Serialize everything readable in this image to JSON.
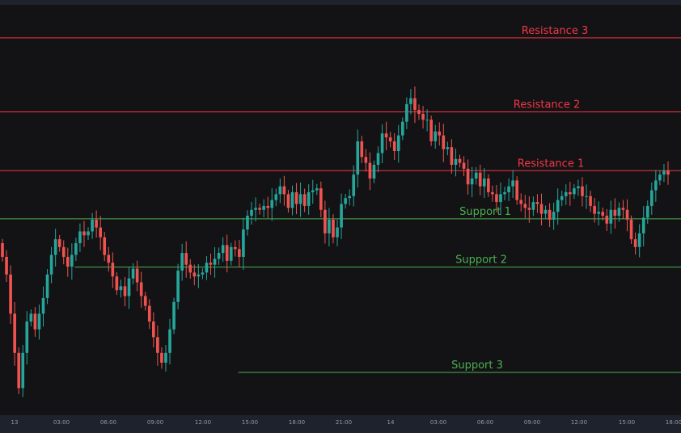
{
  "chart_data": {
    "type": "candlestick",
    "colors": {
      "background": "#131316",
      "up": "#26a69a",
      "down": "#ef5350",
      "resistance": "#f23645",
      "support": "#4caf50",
      "axis_text": "#9598a1"
    },
    "x_tick_labels": [
      "13",
      "03:00",
      "06:00",
      "09:00",
      "12:00",
      "15:00",
      "18:00",
      "21:00",
      "14",
      "03:00",
      "06:00",
      "09:00",
      "12:00",
      "15:00",
      "18:00"
    ],
    "ylim": [
      0,
      100
    ],
    "levels": [
      {
        "label": "Resistance 3",
        "kind": "resistance",
        "value": 92.4,
        "start": 0
      },
      {
        "label": "Resistance 2",
        "kind": "resistance",
        "value": 73.5,
        "start": 0
      },
      {
        "label": "Resistance 1",
        "kind": "resistance",
        "value": 58.5,
        "start": 0
      },
      {
        "label": "Support 1",
        "kind": "support",
        "value": 46.2,
        "start": 0
      },
      {
        "label": "Support 2",
        "kind": "support",
        "value": 33.9,
        "start": 0.11
      },
      {
        "label": "Support 3",
        "kind": "support",
        "value": 7.0,
        "start": 0.35
      }
    ],
    "closes": [
      36.5,
      32.0,
      22.0,
      12.0,
      3.0,
      12.0,
      20.0,
      22.0,
      18.0,
      22.0,
      26.0,
      32.0,
      37.0,
      41.0,
      39.0,
      36.5,
      34.0,
      37.0,
      40.0,
      43.0,
      42.0,
      43.0,
      46.0,
      44.0,
      41.5,
      37.0,
      35.0,
      31.5,
      28.0,
      29.0,
      26.5,
      31.0,
      33.5,
      30.0,
      26.5,
      24.0,
      20.0,
      16.0,
      12.0,
      9.5,
      12.0,
      18.0,
      25.0,
      33.0,
      37.5,
      34.5,
      32.5,
      31.5,
      32.0,
      32.5,
      35.0,
      34.5,
      36.0,
      37.5,
      39.5,
      35.5,
      39.0,
      38.5,
      36.5,
      43.5,
      47.0,
      48.5,
      49.0,
      48.5,
      49.5,
      49.0,
      51.0,
      52.5,
      54.5,
      52.5,
      49.0,
      53.0,
      50.0,
      52.5,
      49.5,
      53.0,
      53.5,
      54.0,
      48.5,
      42.5,
      46.0,
      41.5,
      44.0,
      50.0,
      51.5,
      52.0,
      57.5,
      66.0,
      62.0,
      60.5,
      56.5,
      60.0,
      63.0,
      68.0,
      67.0,
      66.0,
      63.5,
      67.5,
      71.0,
      75.5,
      77.0,
      74.0,
      73.0,
      71.5,
      71.5,
      66.0,
      68.5,
      67.5,
      64.0,
      64.5,
      60.0,
      61.5,
      60.5,
      59.0,
      55.0,
      56.5,
      58.0,
      54.5,
      56.5,
      53.0,
      52.5,
      50.5,
      52.5,
      53.0,
      54.5,
      56.0,
      51.0,
      50.0,
      49.0,
      48.5,
      50.5,
      50.0,
      47.5,
      48.5,
      46.0,
      48.0,
      51.0,
      52.0,
      53.0,
      52.5,
      54.0,
      54.5,
      52.0,
      52.0,
      49.5,
      47.5,
      48.0,
      47.0,
      45.0,
      48.5,
      47.0,
      49.0,
      48.5,
      46.0,
      41.0,
      39.0,
      42.5,
      46.5,
      49.5,
      53.5,
      56.0,
      57.5,
      58.5,
      57.5
    ]
  }
}
